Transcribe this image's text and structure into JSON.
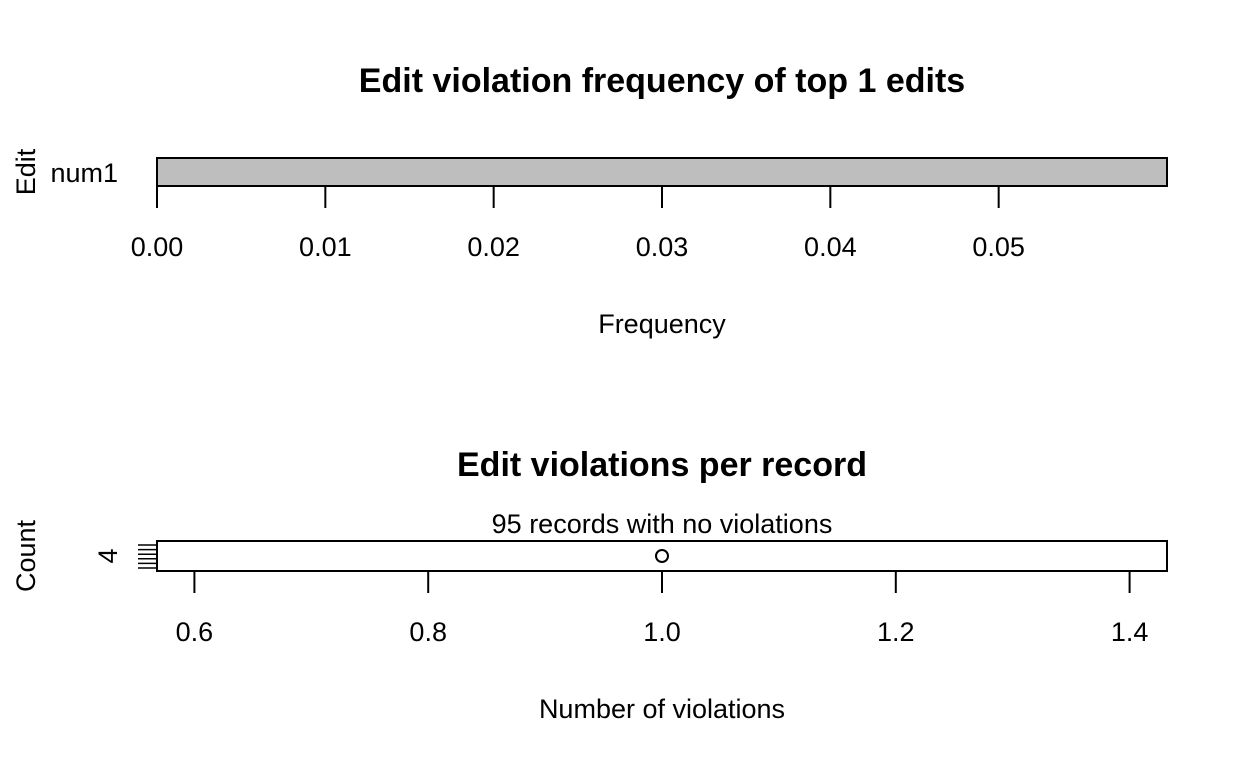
{
  "chart_data": [
    {
      "type": "bar",
      "orientation": "horizontal",
      "title": "Edit violation frequency of top 1 edits",
      "xlabel": "Frequency",
      "ylabel": "Edit",
      "categories": [
        "num1"
      ],
      "values": [
        0.06
      ],
      "bar_color": "#bebebe",
      "xlim": [
        0,
        0.06
      ],
      "xticks": [
        0.0,
        0.01,
        0.02,
        0.03,
        0.04,
        0.05
      ],
      "xtick_labels": [
        "0.00",
        "0.01",
        "0.02",
        "0.03",
        "0.04",
        "0.05"
      ],
      "grid": false
    },
    {
      "type": "scatter",
      "title": "Edit violations per record",
      "subtitle": "95 records with no violations",
      "xlabel": "Number of violations",
      "ylabel": "Count",
      "points": [
        {
          "x": 1.0,
          "y": 4
        }
      ],
      "ytick_labels": [
        "4"
      ],
      "xlim": [
        0.568,
        1.432
      ],
      "xticks": [
        0.6,
        0.8,
        1.0,
        1.2,
        1.4
      ],
      "xtick_labels": [
        "0.6",
        "0.8",
        "1.0",
        "1.2",
        "1.4"
      ],
      "rug_count": 6,
      "grid": false
    }
  ]
}
